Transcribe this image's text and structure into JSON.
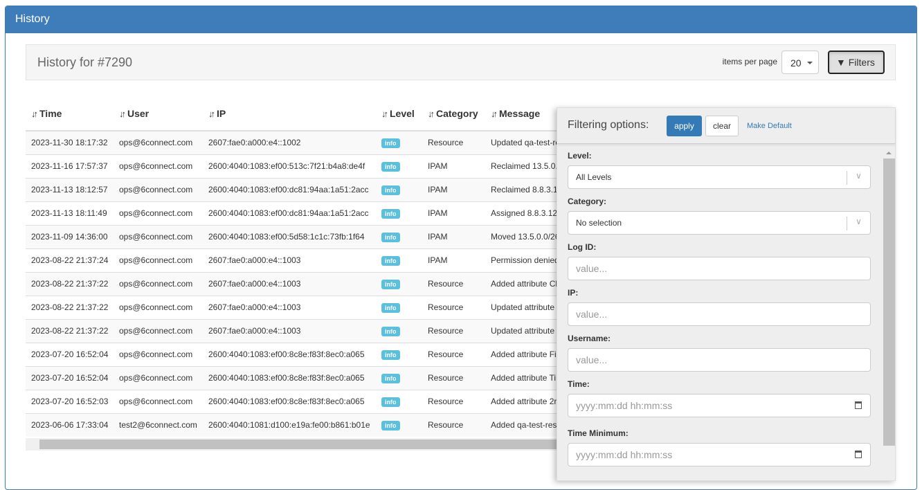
{
  "panel": {
    "title": "History"
  },
  "header": {
    "title": "History for #7290",
    "items_per_page_label": "items per page",
    "items_per_page": "20",
    "filters_label": "Filters"
  },
  "table": {
    "columns": [
      "Time",
      "User",
      "IP",
      "Level",
      "Category",
      "Message"
    ],
    "rows": [
      [
        "2023-11-30 18:17:32",
        "ops@6connect.com",
        "2607:fae0:a000:e4::1002",
        "info",
        "Resource",
        "Updated qa-test-re"
      ],
      [
        "2023-11-16 17:57:37",
        "ops@6connect.com",
        "2600:4040:1083:ef00:513c:7f21:b4a8:de4f",
        "info",
        "IPAM",
        "Reclaimed 13.5.0."
      ],
      [
        "2023-11-13 18:12:57",
        "ops@6connect.com",
        "2600:4040:1083:ef00:dc81:94aa:1a51:2acc",
        "info",
        "IPAM",
        "Reclaimed 8.8.3.1"
      ],
      [
        "2023-11-13 18:11:49",
        "ops@6connect.com",
        "2600:4040:1083:ef00:dc81:94aa:1a51:2acc",
        "info",
        "IPAM",
        "Assigned 8.8.3.12"
      ],
      [
        "2023-11-09 14:36:00",
        "ops@6connect.com",
        "2600:4040:1083:ef00:5d58:1c1c:73fb:1f64",
        "info",
        "IPAM",
        "Moved 13.5.0.0/26"
      ],
      [
        "2023-08-22 21:37:24",
        "ops@6connect.com",
        "2607:fae0:a000:e4::1003",
        "info",
        "IPAM",
        "Permission denied"
      ],
      [
        "2023-08-22 21:37:22",
        "ops@6connect.com",
        "2607:fae0:a000:e4::1003",
        "info",
        "Resource",
        "Added attribute Cl"
      ],
      [
        "2023-08-22 21:37:22",
        "ops@6connect.com",
        "2607:fae0:a000:e4::1003",
        "info",
        "Resource",
        "Updated attribute"
      ],
      [
        "2023-08-22 21:37:22",
        "ops@6connect.com",
        "2607:fae0:a000:e4::1003",
        "info",
        "Resource",
        "Updated attribute"
      ],
      [
        "2023-07-20 16:52:04",
        "ops@6connect.com",
        "2600:4040:1083:ef00:8c8e:f83f:8ec0:a065",
        "info",
        "Resource",
        "Added attribute Fi"
      ],
      [
        "2023-07-20 16:52:04",
        "ops@6connect.com",
        "2600:4040:1083:ef00:8c8e:f83f:8ec0:a065",
        "info",
        "Resource",
        "Added attribute Ti"
      ],
      [
        "2023-07-20 16:52:03",
        "ops@6connect.com",
        "2600:4040:1083:ef00:8c8e:f83f:8ec0:a065",
        "info",
        "Resource",
        "Added attribute 2r"
      ],
      [
        "2023-06-06 17:33:04",
        "test2@6connect.com",
        "2600:4040:1081:d100:e19a:fe00:b861:b01e",
        "info",
        "Resource",
        "Added qa-test-res"
      ]
    ]
  },
  "filters": {
    "title": "Filtering options:",
    "apply": "apply",
    "clear": "clear",
    "make_default": "Make Default",
    "fields": [
      {
        "label": "Level:",
        "type": "select",
        "value": "All Levels"
      },
      {
        "label": "Category:",
        "type": "select",
        "value": "No selection"
      },
      {
        "label": "Log ID:",
        "type": "text",
        "placeholder": "value..."
      },
      {
        "label": "IP:",
        "type": "text",
        "placeholder": "value..."
      },
      {
        "label": "Username:",
        "type": "text",
        "placeholder": "value..."
      },
      {
        "label": "Time:",
        "type": "datetime",
        "placeholder": "yyyy:mm:dd hh:mm:ss"
      },
      {
        "label": "Time Minimum:",
        "type": "datetime",
        "placeholder": "yyyy:mm:dd hh:mm:ss"
      }
    ]
  },
  "colors": {
    "header": "#3f7cba",
    "badge": "#5bc0de",
    "primary": "#337ab7"
  }
}
